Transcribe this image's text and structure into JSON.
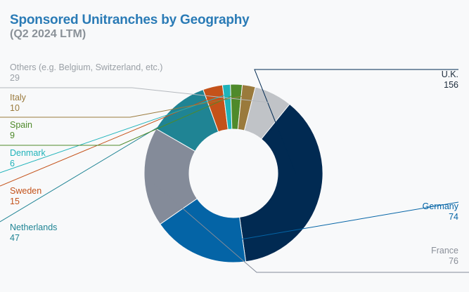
{
  "header": {
    "title": "Sponsored Unitranches by Geography",
    "subtitle": "(Q2 2024 LTM)"
  },
  "chart_data": {
    "type": "pie",
    "variant": "donut",
    "title": "Sponsored Unitranches by Geography",
    "subtitle": "(Q2 2024 LTM)",
    "slices": [
      {
        "label": "U.K.",
        "value": 156,
        "color": "#012a52",
        "label_color": "#1b2a3a"
      },
      {
        "label": "Germany",
        "value": 74,
        "color": "#0464a6",
        "label_color": "#0464a6"
      },
      {
        "label": "France",
        "value": 76,
        "color": "#848b99",
        "label_color": "#8a8f99"
      },
      {
        "label": "Netherlands",
        "value": 47,
        "color": "#1f8494",
        "label_color": "#1f8494"
      },
      {
        "label": "Sweden",
        "value": 15,
        "color": "#c4521a",
        "label_color": "#c4521a"
      },
      {
        "label": "Denmark",
        "value": 6,
        "color": "#1fb3ba",
        "label_color": "#1fb3ba"
      },
      {
        "label": "Spain",
        "value": 9,
        "color": "#4f8a2b",
        "label_color": "#4f8a2b"
      },
      {
        "label": "Italy",
        "value": 10,
        "color": "#9a7a3c",
        "label_color": "#9a7a3c"
      },
      {
        "label": "Others (e.g. Belgium, Switzerland, etc.)",
        "value": 29,
        "color": "#c0c3c7",
        "label_color": "#9aa0a6"
      }
    ]
  }
}
